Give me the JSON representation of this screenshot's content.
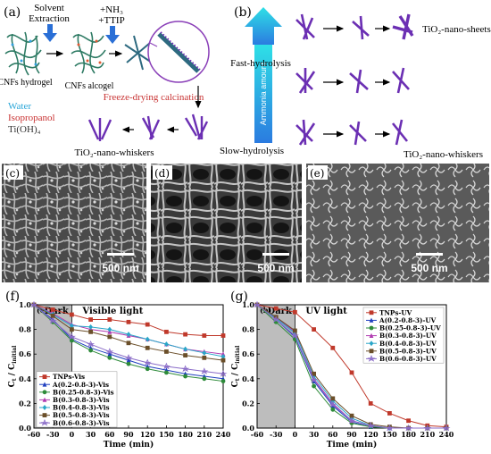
{
  "panels": {
    "a": {
      "letter": "(a)",
      "solvent": "Solvent",
      "extraction": "Extraction",
      "nh3": "+NH₃",
      "ttip": "+TTIP",
      "cnf_hydrogel": "CNFs hydrogel",
      "cnf_alcogel": "CNFs alcogel",
      "freeze": "Freeze-drying calcination",
      "legend_water": "Water",
      "legend_iso": "Isopropanol",
      "legend_tioh": "Ti(OH)₄",
      "whiskers": "TiO₂-nano-whiskers"
    },
    "b": {
      "letter": "(b)",
      "fast": "Fast-hydrolysis",
      "slow": "Slow-hydrolysis",
      "ammonia": "Ammonia amount",
      "sheets": "TiO₂-nano-sheets",
      "whiskers": "TiO₂-nano-whiskers"
    },
    "c": {
      "letter": "(c)",
      "scale": "500 nm"
    },
    "d": {
      "letter": "(d)",
      "scale": "500 nm"
    },
    "e": {
      "letter": "(e)",
      "scale": "500 nm"
    },
    "f": {
      "letter": "(f)"
    },
    "g": {
      "letter": "(g)"
    }
  },
  "colors": {
    "arrow_blue": "#2a6fd6",
    "fiber": "#2d7a63",
    "purple": "#6b2fb3",
    "red": "#c83232"
  },
  "chart_data": [
    {
      "type": "line",
      "panel": "f",
      "inner_label": "(e)",
      "dark_label": "Dark",
      "light_label": "Visible light",
      "xlabel": "Time (min)",
      "ylabel_main": "C",
      "ylabel_sub_t": "t",
      "ylabel_sep": " / C",
      "ylabel_sub_i": "initial",
      "x": [
        -60,
        -30,
        0,
        30,
        60,
        90,
        120,
        150,
        180,
        210,
        240
      ],
      "x_ticks": [
        "-60",
        "-30",
        "0",
        "30",
        "60",
        "90",
        "120",
        "150",
        "180",
        "210",
        "240"
      ],
      "xlim": [
        -60,
        240
      ],
      "ylim": [
        0.0,
        1.0
      ],
      "y_ticks": [
        "0.0",
        "0.2",
        "0.4",
        "0.6",
        "0.8",
        "1.0"
      ],
      "dark_region": [
        -60,
        0
      ],
      "series": [
        {
          "name": "TNPs-Vis",
          "color": "#c0392b",
          "marker": "square",
          "values": [
            1.0,
            0.96,
            0.92,
            0.88,
            0.88,
            0.86,
            0.84,
            0.78,
            0.76,
            0.75,
            0.75
          ]
        },
        {
          "name": "A(0.2-0.8-3)-Vis",
          "color": "#1f3fbf",
          "marker": "triangle",
          "values": [
            1.0,
            0.88,
            0.72,
            0.65,
            0.6,
            0.55,
            0.5,
            0.47,
            0.44,
            0.42,
            0.4
          ]
        },
        {
          "name": "B(0.25-0.8-3)-Vis",
          "color": "#2e8b3a",
          "marker": "circle",
          "values": [
            1.0,
            0.86,
            0.71,
            0.63,
            0.57,
            0.52,
            0.48,
            0.45,
            0.42,
            0.4,
            0.38
          ]
        },
        {
          "name": "B(0.3-0.8-3)-Vis",
          "color": "#b03ab0",
          "marker": "triangle",
          "values": [
            1.0,
            0.93,
            0.84,
            0.8,
            0.78,
            0.75,
            0.72,
            0.68,
            0.64,
            0.62,
            0.6
          ]
        },
        {
          "name": "B(0.4-0.8-3)-Vis",
          "color": "#2aa6c8",
          "marker": "diamond",
          "values": [
            1.0,
            0.92,
            0.83,
            0.82,
            0.8,
            0.76,
            0.72,
            0.68,
            0.64,
            0.61,
            0.58
          ]
        },
        {
          "name": "B(0.5-0.8-3)-Vis",
          "color": "#6b4f2a",
          "marker": "square",
          "values": [
            1.0,
            0.91,
            0.8,
            0.78,
            0.74,
            0.69,
            0.65,
            0.62,
            0.59,
            0.57,
            0.55
          ]
        },
        {
          "name": "B(0.6-0.8-3)-Vis",
          "color": "#8a6cc8",
          "marker": "star",
          "values": [
            1.0,
            0.87,
            0.74,
            0.68,
            0.62,
            0.57,
            0.53,
            0.5,
            0.48,
            0.46,
            0.44
          ]
        }
      ],
      "legend": "bottom-left"
    },
    {
      "type": "line",
      "panel": "g",
      "inner_label": "(b)",
      "dark_label": "Dark",
      "light_label": "UV light",
      "xlabel": "Time (min)",
      "ylabel_main": "C",
      "ylabel_sub_t": "t",
      "ylabel_sep": " / C",
      "ylabel_sub_i": "initial",
      "x": [
        -60,
        -30,
        0,
        30,
        60,
        90,
        120,
        150,
        180,
        210,
        240
      ],
      "x_ticks": [
        "-60",
        "-30",
        "0",
        "30",
        "60",
        "90",
        "120",
        "150",
        "180",
        "210",
        "240"
      ],
      "xlim": [
        -60,
        240
      ],
      "ylim": [
        0.0,
        1.0
      ],
      "y_ticks": [
        "0.0",
        "0.2",
        "0.4",
        "0.6",
        "0.8",
        "1.0"
      ],
      "dark_region": [
        -60,
        0
      ],
      "series": [
        {
          "name": "TNPs-UV",
          "color": "#c0392b",
          "marker": "square",
          "values": [
            1.0,
            0.97,
            0.94,
            0.8,
            0.65,
            0.45,
            0.2,
            0.12,
            0.06,
            0.02,
            0.01
          ]
        },
        {
          "name": "A(0.2-0.8-3)-UV",
          "color": "#1f3fbf",
          "marker": "triangle",
          "values": [
            1.0,
            0.88,
            0.74,
            0.38,
            0.18,
            0.05,
            0.01,
            0.0,
            0.0,
            0.0,
            0.0
          ]
        },
        {
          "name": "B(0.25-0.8-3)-UV",
          "color": "#2e8b3a",
          "marker": "circle",
          "values": [
            1.0,
            0.86,
            0.72,
            0.34,
            0.15,
            0.04,
            0.01,
            0.0,
            0.0,
            0.0,
            0.0
          ]
        },
        {
          "name": "B(0.3-0.8-3)-UV",
          "color": "#b03ab0",
          "marker": "triangle",
          "values": [
            1.0,
            0.9,
            0.78,
            0.4,
            0.2,
            0.06,
            0.02,
            0.0,
            0.0,
            0.0,
            0.0
          ]
        },
        {
          "name": "B(0.4-0.8-3)-UV",
          "color": "#2aa6c8",
          "marker": "diamond",
          "values": [
            1.0,
            0.89,
            0.77,
            0.42,
            0.22,
            0.08,
            0.02,
            0.0,
            0.0,
            0.0,
            0.0
          ]
        },
        {
          "name": "B(0.5-0.8-3)-UV",
          "color": "#6b4f2a",
          "marker": "square",
          "values": [
            1.0,
            0.9,
            0.79,
            0.44,
            0.24,
            0.1,
            0.03,
            0.01,
            0.0,
            0.0,
            0.0
          ]
        },
        {
          "name": "B(0.6-0.8-3)-UV",
          "color": "#8a6cc8",
          "marker": "star",
          "values": [
            1.0,
            0.88,
            0.75,
            0.39,
            0.19,
            0.06,
            0.02,
            0.0,
            0.0,
            0.0,
            0.0
          ]
        }
      ],
      "legend": "top-right"
    }
  ]
}
